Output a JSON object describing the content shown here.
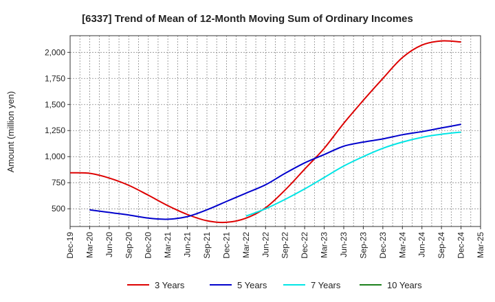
{
  "chart_data": {
    "type": "line",
    "title": "[6337]  Trend of Mean of 12-Month Moving Sum of Ordinary Incomes",
    "xlabel": "",
    "ylabel": "Amount (million yen)",
    "categories": [
      "Dec-19",
      "Mar-20",
      "Jun-20",
      "Sep-20",
      "Dec-20",
      "Mar-21",
      "Jun-21",
      "Sep-21",
      "Dec-21",
      "Mar-22",
      "Jun-22",
      "Sep-22",
      "Dec-22",
      "Mar-23",
      "Jun-23",
      "Sep-23",
      "Dec-23",
      "Mar-24",
      "Jun-24",
      "Sep-24",
      "Dec-24",
      "Mar-25"
    ],
    "ylim": [
      330,
      2160
    ],
    "yticks": [
      500,
      750,
      1000,
      1250,
      1500,
      1750,
      2000
    ],
    "ytick_labels": [
      "500",
      "750",
      "1,000",
      "1,250",
      "1,500",
      "1,750",
      "2,000"
    ],
    "grid": true,
    "legend_position": "bottom",
    "series": [
      {
        "name": "3 Years",
        "color": "#dd0000",
        "values": [
          845,
          840,
          795,
          725,
          630,
          530,
          445,
          385,
          370,
          410,
          510,
          680,
          880,
          1080,
          1320,
          1540,
          1750,
          1950,
          2070,
          2110,
          2100,
          null
        ]
      },
      {
        "name": "5 Years",
        "color": "#0000cc",
        "values": [
          null,
          490,
          465,
          440,
          410,
          400,
          425,
          490,
          570,
          650,
          730,
          840,
          940,
          1020,
          1100,
          1140,
          1170,
          1210,
          1240,
          1275,
          1310,
          null
        ]
      },
      {
        "name": "7 Years",
        "color": "#00e5e5",
        "values": [
          null,
          null,
          null,
          null,
          null,
          null,
          null,
          null,
          null,
          430,
          500,
          590,
          690,
          800,
          910,
          1000,
          1080,
          1140,
          1185,
          1215,
          1235,
          null
        ]
      },
      {
        "name": "10 Years",
        "color": "#1a7f1a",
        "values": [
          null,
          null,
          null,
          null,
          null,
          null,
          null,
          null,
          null,
          null,
          null,
          null,
          null,
          null,
          null,
          null,
          null,
          null,
          null,
          null,
          null,
          null
        ]
      }
    ]
  }
}
